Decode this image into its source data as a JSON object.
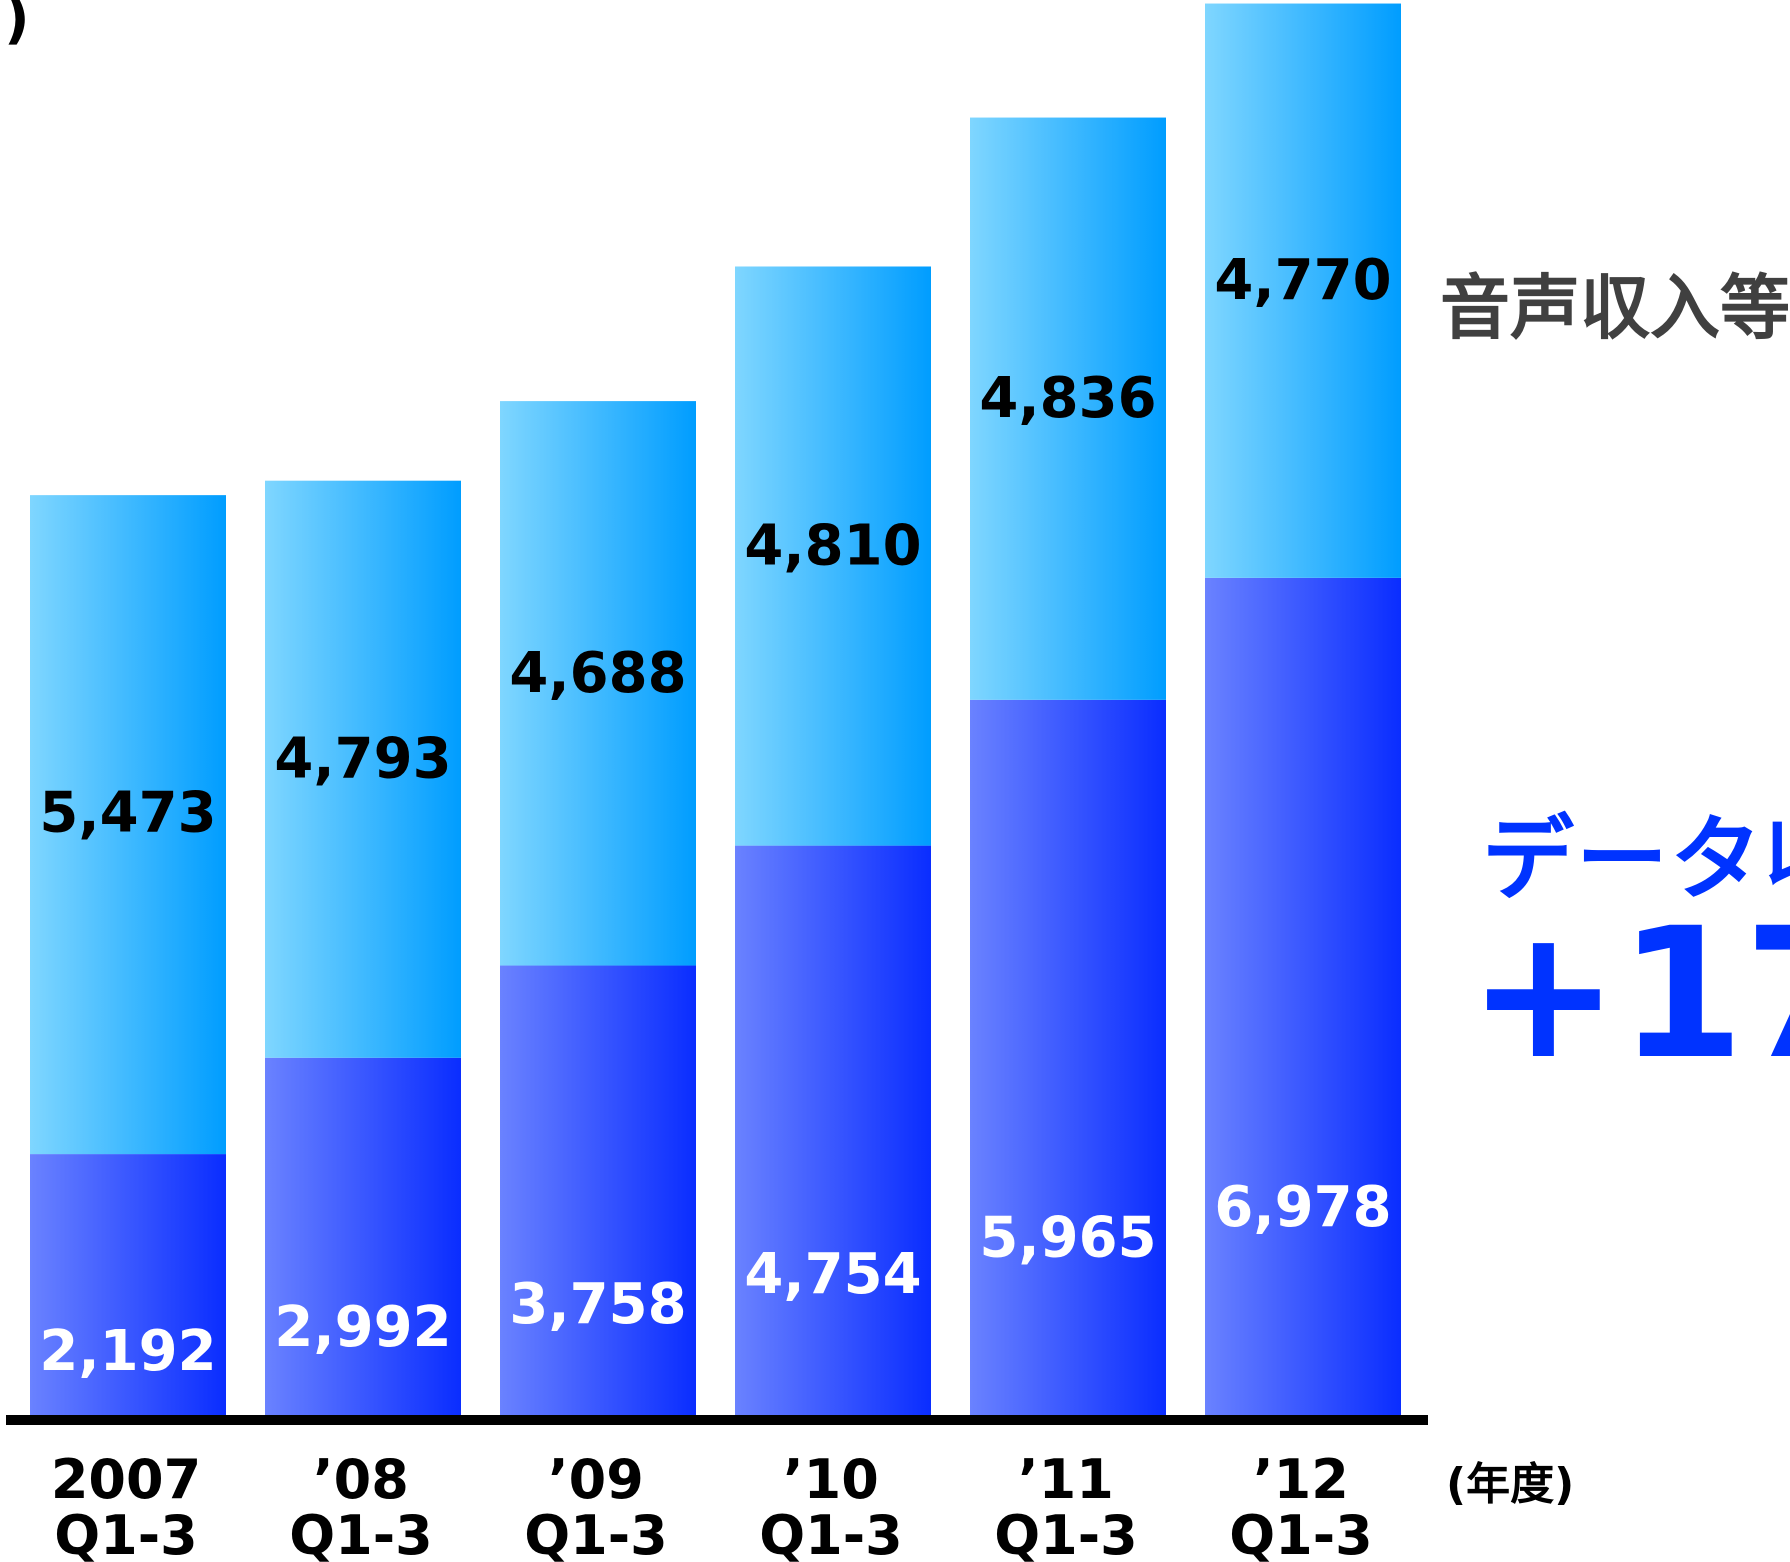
{
  "chart_data": {
    "type": "bar",
    "stacked": true,
    "categories": [
      [
        "2007",
        "Q1-3"
      ],
      [
        "’08",
        "Q1-3"
      ],
      [
        "’09",
        "Q1-3"
      ],
      [
        "’10",
        "Q1-3"
      ],
      [
        "’11",
        "Q1-3"
      ],
      [
        "’12",
        "Q1-3"
      ]
    ],
    "series": [
      {
        "values": [
          2192,
          2992,
          3758,
          4754,
          5965,
          6978
        ],
        "labels": [
          "2,192",
          "2,992",
          "3,758",
          "4,754",
          "5,965",
          "6,978"
        ],
        "color_light": "#6a82ff",
        "color_dark": "#0a2dff",
        "label_color": "#ffffff"
      },
      {
        "name": "音声収入等",
        "values": [
          5473,
          4793,
          4688,
          4810,
          4836,
          4770
        ],
        "labels": [
          "5,473",
          "4,793",
          "4,688",
          "4,810",
          "4,836",
          "4,770"
        ],
        "color_light": "#7fd6ff",
        "color_dark": "#009dff",
        "label_color": "#000000"
      }
    ],
    "ylim": [
      0,
      11748
    ],
    "xlabel": "(年度)",
    "annotations": {
      "top_left_fragment": ")",
      "data_label_fragment": "データ収",
      "growth_fragment": "+17"
    }
  }
}
